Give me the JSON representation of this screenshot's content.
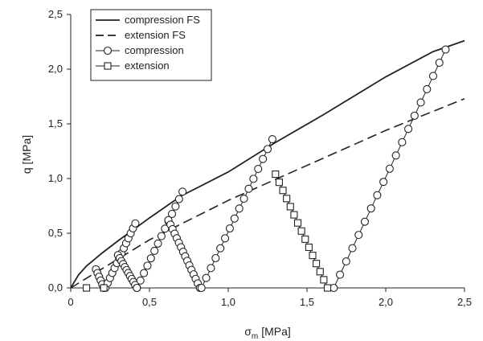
{
  "chart_data": {
    "type": "line",
    "xlabel": "σ",
    "xlabel_sub": "m",
    "xlabel_unit": "[MPa]",
    "ylabel": "q [MPa]",
    "xlim": [
      0,
      2.5
    ],
    "ylim": [
      0,
      2.5
    ],
    "x_ticks": [
      0,
      0.5,
      1.0,
      1.5,
      2.0,
      2.5
    ],
    "x_tick_labels": [
      "0",
      "0,5",
      "1,0",
      "1,5",
      "2,0",
      "2,5"
    ],
    "y_ticks": [
      0,
      0.5,
      1.0,
      1.5,
      2.0,
      2.5
    ],
    "y_tick_labels": [
      "0,0",
      "0,5",
      "1,0",
      "1,5",
      "2,0",
      "2,5"
    ],
    "grid": false,
    "legend_position": "top-left",
    "legend": [
      {
        "label": "compression FS",
        "style": "solid"
      },
      {
        "label": "extension FS",
        "style": "dashed"
      },
      {
        "label": "compression",
        "style": "line-circle"
      },
      {
        "label": "extension",
        "style": "line-square"
      }
    ],
    "series": [
      {
        "name": "compression FS",
        "style": "solid",
        "points": [
          [
            0,
            0
          ],
          [
            0.05,
            0.12
          ],
          [
            0.1,
            0.2
          ],
          [
            0.2,
            0.32
          ],
          [
            0.3,
            0.43
          ],
          [
            0.5,
            0.64
          ],
          [
            0.7,
            0.84
          ],
          [
            1.0,
            1.06
          ],
          [
            1.3,
            1.33
          ],
          [
            1.6,
            1.58
          ],
          [
            2.0,
            1.93
          ],
          [
            2.3,
            2.16
          ],
          [
            2.5,
            2.26
          ]
        ]
      },
      {
        "name": "extension FS",
        "style": "dashed",
        "points": [
          [
            0,
            0
          ],
          [
            0.5,
            0.44
          ],
          [
            1.0,
            0.8
          ],
          [
            1.5,
            1.12
          ],
          [
            2.0,
            1.44
          ],
          [
            2.5,
            1.73
          ]
        ]
      },
      {
        "name": "compression",
        "style": "line-circle",
        "segments": [
          {
            "start": [
              0.16,
              0.17
            ],
            "end": [
              0.21,
              0.0
            ],
            "n": 6
          },
          {
            "start": [
              0.22,
              0.0
            ],
            "end": [
              0.41,
              0.59
            ],
            "n": 14
          },
          {
            "start": [
              0.3,
              0.3
            ],
            "end": [
              0.42,
              0.0
            ],
            "n": 12
          },
          {
            "start": [
              0.42,
              0.0
            ],
            "end": [
              0.71,
              0.88
            ],
            "n": 14
          },
          {
            "start": [
              0.62,
              0.62
            ],
            "end": [
              0.82,
              0.0
            ],
            "n": 16
          },
          {
            "start": [
              0.83,
              0.0
            ],
            "end": [
              1.28,
              1.36
            ],
            "n": 16
          },
          {
            "start": [
              1.67,
              0.0
            ],
            "end": [
              2.38,
              2.18
            ],
            "n": 19
          }
        ]
      },
      {
        "name": "extension",
        "style": "line-square",
        "segments": [
          {
            "start": [
              0.1,
              0.0
            ],
            "end": [
              0.21,
              0.0
            ],
            "n": 2
          },
          {
            "start": [
              1.3,
              1.04
            ],
            "end": [
              1.63,
              0.0
            ],
            "n": 15
          }
        ]
      }
    ]
  }
}
